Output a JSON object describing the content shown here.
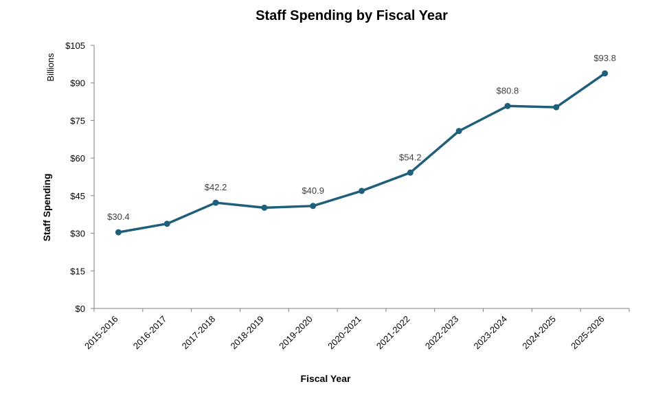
{
  "chart_data": {
    "type": "line",
    "title": "Staff Spending by Fiscal Year",
    "xlabel": "Fiscal Year",
    "ylabel": "Staff Spending",
    "y_unit_label": "Billions",
    "ylim": [
      0,
      105
    ],
    "y_ticks": [
      0,
      15,
      30,
      45,
      60,
      75,
      90,
      105
    ],
    "y_tick_labels": [
      "$0",
      "$15",
      "$30",
      "$45",
      "$60",
      "$75",
      "$90",
      "$105"
    ],
    "grid": false,
    "legend": "none",
    "categories": [
      "2015-2016",
      "2016-2017",
      "2017-2018",
      "2018-2019",
      "2019-2020",
      "2020-2021",
      "2021-2022",
      "2022-2023",
      "2023-2024",
      "2024-2025",
      "2025-2026"
    ],
    "series": [
      {
        "values": [
          30.4,
          33.8,
          42.2,
          40.2,
          40.9,
          46.9,
          54.2,
          70.8,
          80.8,
          80.3,
          93.8
        ],
        "color": "#1f5f7a"
      }
    ],
    "data_labels": [
      {
        "index": 0,
        "text": "$30.4"
      },
      {
        "index": 2,
        "text": "$42.2"
      },
      {
        "index": 4,
        "text": "$40.9"
      },
      {
        "index": 6,
        "text": "$54.2"
      },
      {
        "index": 8,
        "text": "$80.8"
      },
      {
        "index": 10,
        "text": "$93.8"
      }
    ]
  }
}
